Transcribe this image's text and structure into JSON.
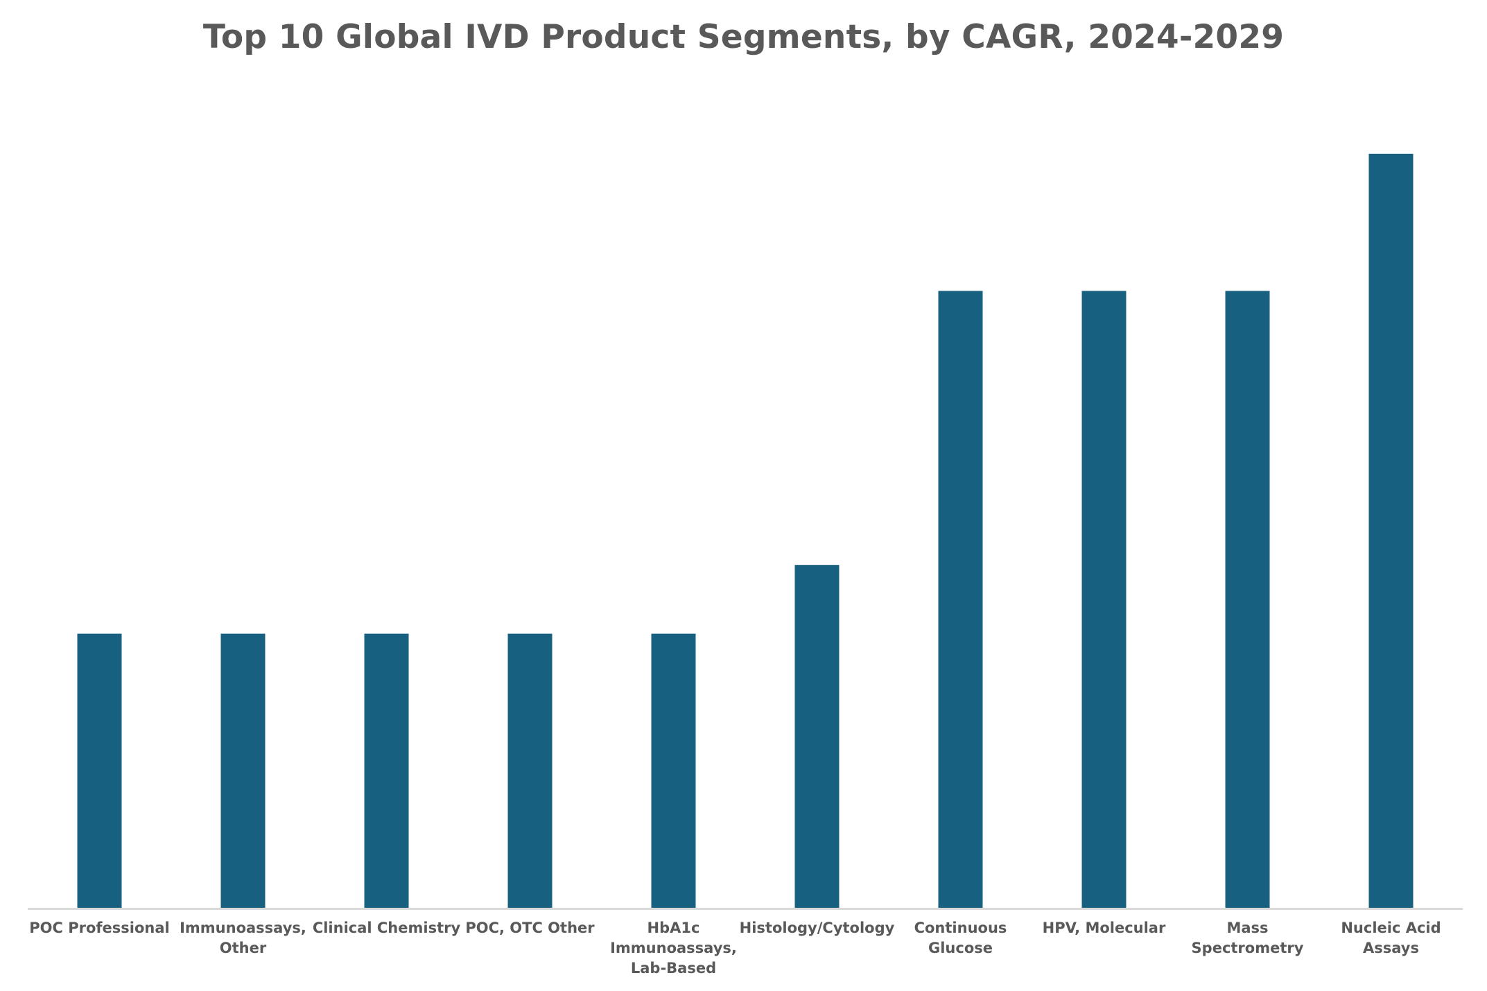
{
  "chart_data": {
    "type": "bar",
    "title": "Top 10 Global IVD Product Segments, by CAGR, 2024-2029",
    "xlabel": "",
    "ylabel": "",
    "categories": [
      "POC Professional",
      "Immunoassays, Other",
      "Clinical Chemistry",
      "POC, OTC Other",
      "HbA1c Immunoassays, Lab-Based",
      "Histology/Cytology",
      "Continuous Glucose",
      "HPV, Molecular",
      "Mass Spectrometry",
      "Nucleic Acid Assays"
    ],
    "category_lines": [
      [
        "POC Professional"
      ],
      [
        "Immunoassays,",
        "Other"
      ],
      [
        "Clinical Chemistry"
      ],
      [
        "POC, OTC Other"
      ],
      [
        "HbA1c",
        "Immunoassays,",
        "Lab-Based"
      ],
      [
        "Histology/Cytology"
      ],
      [
        "Continuous",
        "Glucose"
      ],
      [
        "HPV, Molecular"
      ],
      [
        "Mass",
        "Spectrometry"
      ],
      [
        "Nucleic Acid",
        "Assays"
      ]
    ],
    "values": [
      4.0,
      4.0,
      4.0,
      4.0,
      4.0,
      5.0,
      9.0,
      9.0,
      9.0,
      11.0
    ],
    "ylim": [
      0,
      12
    ],
    "grid": false,
    "legend": "none",
    "bar_color": "#17607f",
    "axis_color": "#d9d9d9",
    "label_color": "#595959"
  }
}
